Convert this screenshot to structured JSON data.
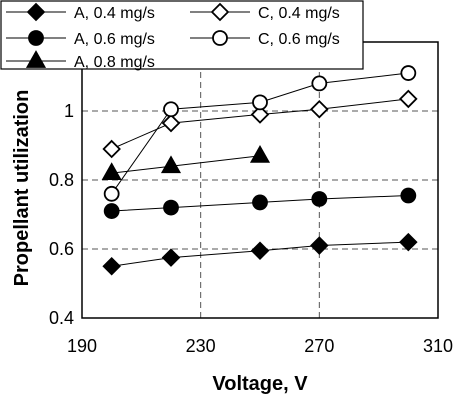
{
  "chart_data": {
    "type": "line",
    "xlabel": "Voltage, V",
    "ylabel": "Propellant utilization",
    "xlim": [
      190,
      310
    ],
    "ylim": [
      0.4,
      1.2
    ],
    "xticks": [
      "190",
      "230",
      "270",
      "310"
    ],
    "yticks": [
      "0.4",
      "0.6",
      "0.8",
      "1"
    ],
    "grid": "dashed",
    "legend_position": "top-left",
    "series": [
      {
        "name": "A, 0.4 mg/s",
        "marker": "diamond-filled",
        "line": true,
        "x": [
          200,
          220,
          250,
          270,
          300
        ],
        "y": [
          0.55,
          0.575,
          0.595,
          0.61,
          0.62
        ]
      },
      {
        "name": "C, 0.4 mg/s",
        "marker": "diamond-open",
        "line": true,
        "x": [
          200,
          220,
          250,
          270,
          300
        ],
        "y": [
          0.89,
          0.965,
          0.99,
          1.005,
          1.035
        ]
      },
      {
        "name": "A, 0.6 mg/s",
        "marker": "circle-filled",
        "line": true,
        "x": [
          200,
          220,
          250,
          270,
          300
        ],
        "y": [
          0.71,
          0.72,
          0.735,
          0.745,
          0.755
        ]
      },
      {
        "name": "C, 0.6 mg/s",
        "marker": "circle-open",
        "line": true,
        "x": [
          200,
          220,
          250,
          270,
          300
        ],
        "y": [
          0.76,
          1.005,
          1.025,
          1.08,
          1.11
        ]
      },
      {
        "name": "A, 0.8 mg/s",
        "marker": "triangle-filled",
        "line": true,
        "x": [
          200,
          220,
          250
        ],
        "y": [
          0.82,
          0.84,
          0.87
        ]
      }
    ]
  }
}
